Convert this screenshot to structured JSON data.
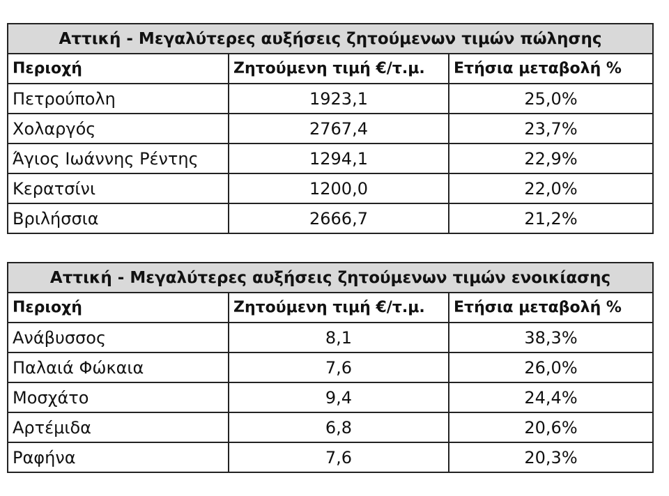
{
  "tables": [
    {
      "title": "Αττική - Μεγαλύτερες αυξήσεις ζητούμενων τιμών πώλησης",
      "header": [
        "Περιοχή",
        "Ζητούμενη τιμή €/τ.μ.",
        "Ετήσια μεταβολή %"
      ],
      "rows": [
        [
          "Πετρούπολη",
          "1923,1",
          "25,0%"
        ],
        [
          "Χολαργός",
          "2767,4",
          "23,7%"
        ],
        [
          "Άγιος Ιωάννης Ρέντης",
          "1294,1",
          "22,9%"
        ],
        [
          "Κερατσίνι",
          "1200,0",
          "22,0%"
        ],
        [
          "Βριλήσσια",
          "2666,7",
          "21,2%"
        ]
      ]
    },
    {
      "title": "Αττική - Μεγαλύτερες αυξήσεις ζητούμενων τιμών ενοικίασης",
      "header": [
        "Περιοχή",
        "Ζητούμενη τιμή €/τ.μ.",
        "Ετήσια μεταβολή %"
      ],
      "rows": [
        [
          "Ανάβυσσος",
          "8,1",
          "38,3%"
        ],
        [
          "Παλαιά Φώκαια",
          "7,6",
          "26,0%"
        ],
        [
          "Μοσχάτο",
          "9,4",
          "24,4%"
        ],
        [
          "Αρτέμιδα",
          "6,8",
          "20,6%"
        ],
        [
          "Ραφήνα",
          "7,6",
          "20,3%"
        ]
      ]
    }
  ]
}
